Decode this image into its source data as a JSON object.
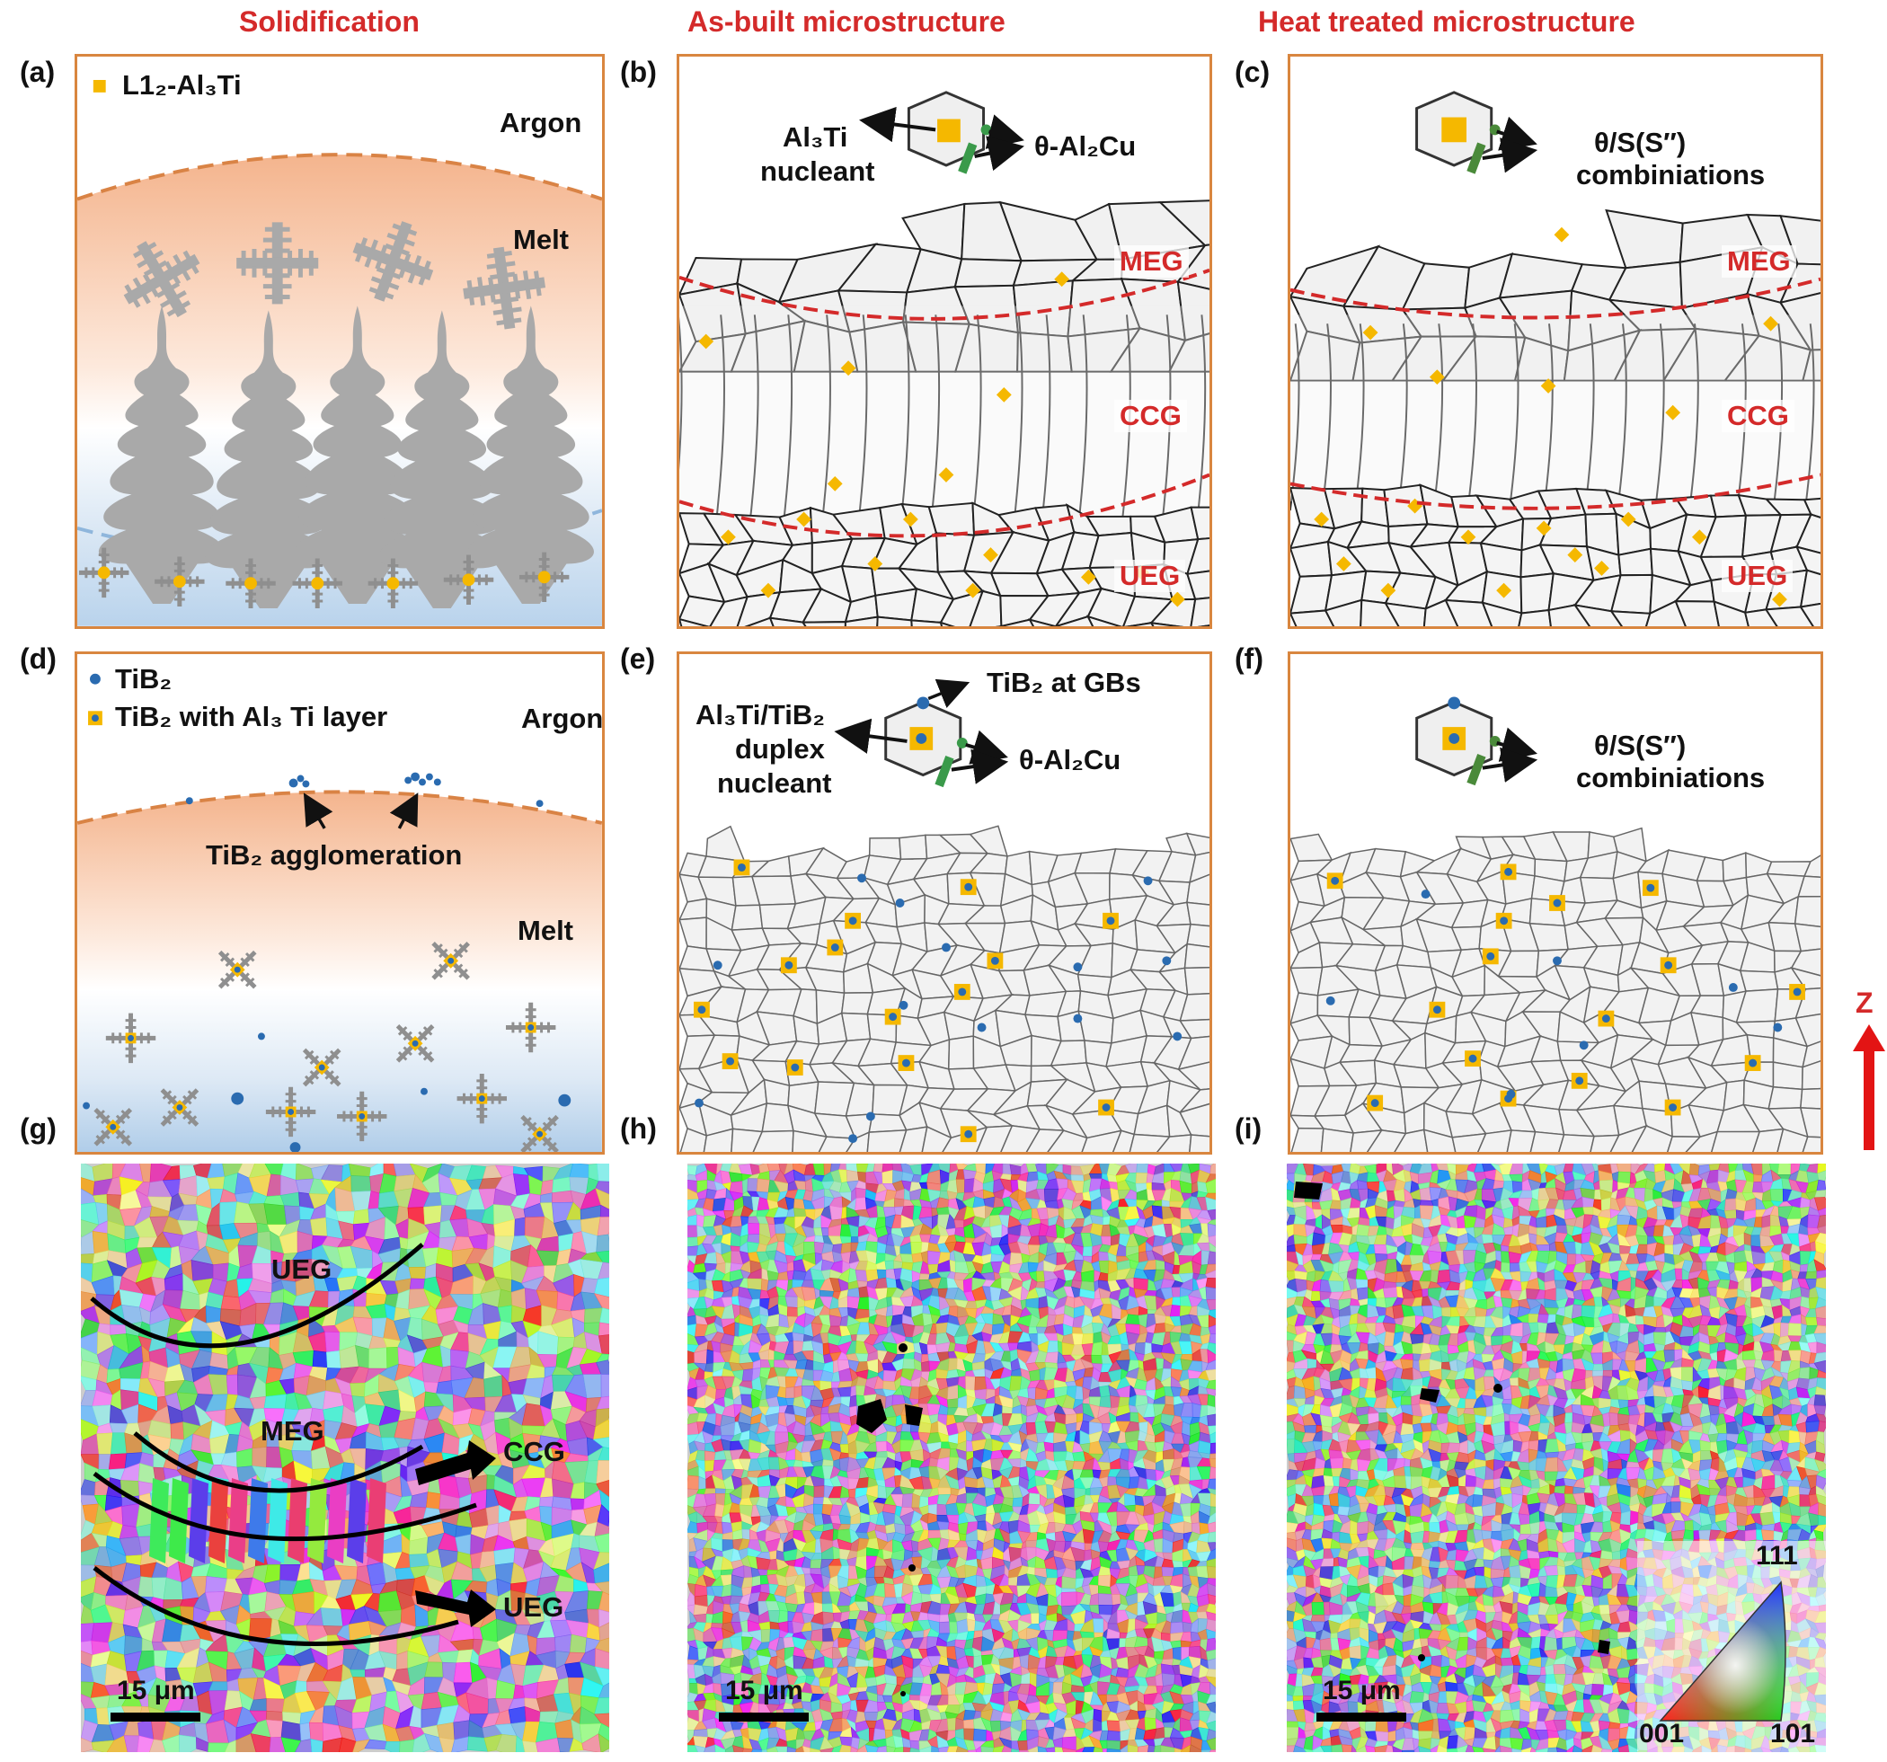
{
  "columns": {
    "solidification": "Solidification",
    "as_built": "As-built microstructure",
    "heat_treated": "Heat treated microstructure"
  },
  "panel_labels": {
    "a": "(a)",
    "b": "(b)",
    "c": "(c)",
    "d": "(d)",
    "e": "(e)",
    "f": "(f)",
    "g": "(g)",
    "h": "(h)",
    "i": "(i)"
  },
  "panel_a": {
    "legend": "L1₂-Al₃Ti",
    "argon": "Argon",
    "melt": "Melt"
  },
  "panel_b": {
    "nucleant_line1": "Al₃Ti",
    "nucleant_line2": "nucleant",
    "precipitate": "θ-Al₂Cu",
    "meg": "MEG",
    "ccg": "CCG",
    "ueg": "UEG"
  },
  "panel_c": {
    "combo_line1": "θ/S(S″)",
    "combo_line2": "combiniations",
    "meg": "MEG",
    "ccg": "CCG",
    "ueg": "UEG"
  },
  "panel_d": {
    "legend_tib2": "TiB₂",
    "legend_layer": "TiB₂  with Al₃ Ti layer",
    "argon": "Argon",
    "agglomeration": "TiB₂ agglomeration",
    "melt": "Melt"
  },
  "panel_e": {
    "nucleant_line1": "Al₃Ti/TiB₂",
    "nucleant_line2": "duplex",
    "nucleant_line3": "nucleant",
    "tib2_gbs": "TiB₂ at GBs",
    "precipitate": "θ-Al₂Cu"
  },
  "panel_f": {
    "combo_line1": "θ/S(S″)",
    "combo_line2": "combiniations"
  },
  "build_direction": "Z",
  "panel_g": {
    "ueg_top": "UEG",
    "meg": "MEG",
    "ccg": "CCG",
    "ueg_bottom": "UEG",
    "scale": "15 μm"
  },
  "panel_h": {
    "scale": "15 μm"
  },
  "panel_i": {
    "scale": "15 μm",
    "ipf_111": "111",
    "ipf_001": "001",
    "ipf_101": "101"
  },
  "colors": {
    "title_red": "#d42a2a",
    "panel_border": "#d9863f",
    "al3ti": "#f5b800",
    "tib2": "#2a6bb0",
    "dendrite": "#a9a9a9"
  }
}
